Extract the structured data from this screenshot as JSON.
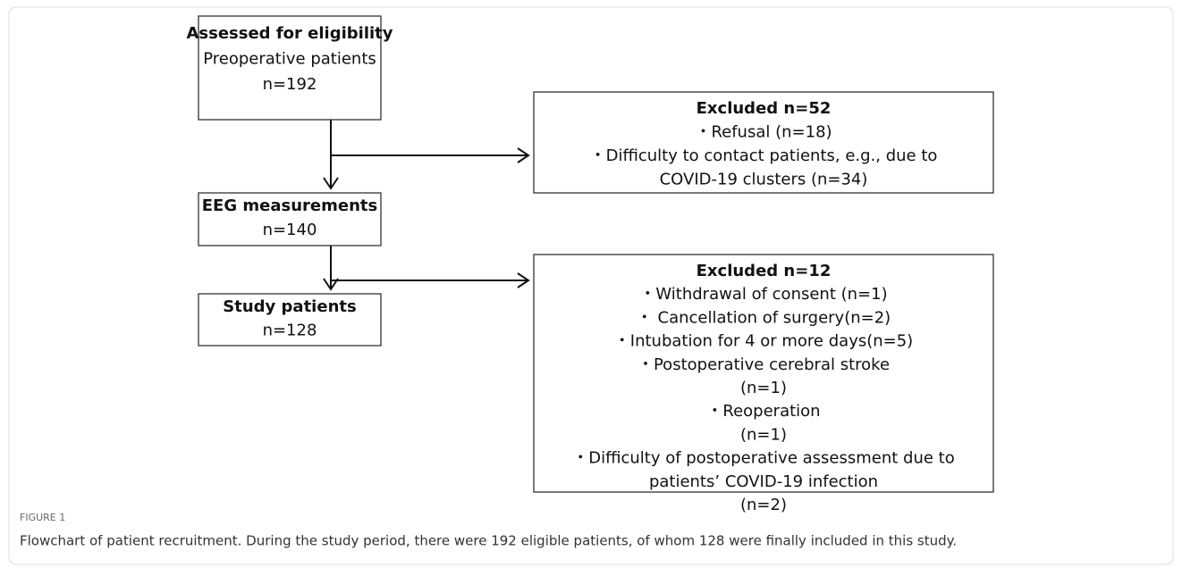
{
  "nodes": [
    {
      "lines": [
        "Assessed for eligibility",
        "Preoperative patients",
        "n=192"
      ]
    },
    {
      "lines": [
        "Excluded n=52",
        "・Refusal (n=18)",
        "・Difficulty to contact patients, e.g., due to",
        "COVID-19 clusters (n=34)"
      ]
    },
    {
      "lines": [
        "EEG measurements",
        "n=140"
      ]
    },
    {
      "lines": [
        "Excluded n=12",
        "・Withdrawal of consent (n=1)",
        "・ Cancellation of surgery(n=2)",
        "・Intubation for 4 or more days(n=5)",
        "・Postoperative cerebral stroke",
        "(n=1)",
        "・Reoperation",
        "(n=1)",
        "・Difficulty of postoperative assessment due to",
        "patients’ COVID-19 infection",
        "(n=2)"
      ]
    },
    {
      "lines": [
        "Study patients",
        "n=128"
      ]
    }
  ],
  "caption": {
    "label": "FIGURE 1",
    "text": "Flowchart of patient recruitment. During the study period, there were 192 eligible patients, of whom 128 were finally included in this study."
  }
}
